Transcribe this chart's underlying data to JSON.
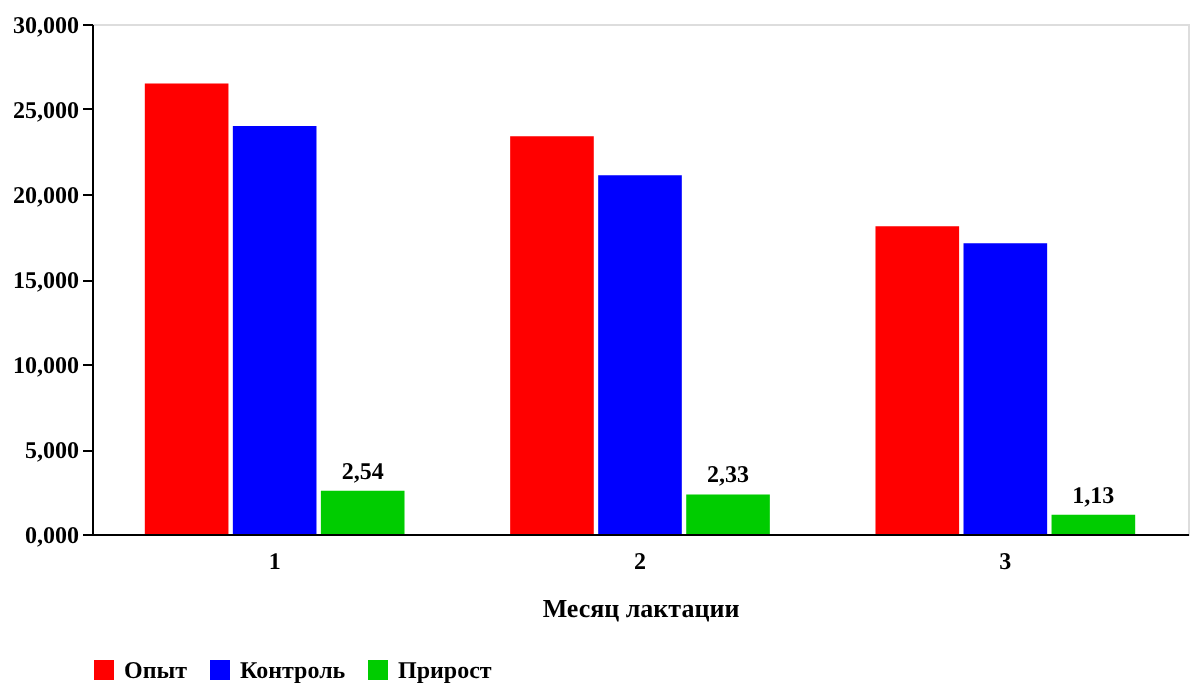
{
  "chart_data": {
    "type": "bar",
    "xlabel": "Месяц лактации",
    "categories": [
      "1",
      "2",
      "3"
    ],
    "series": [
      {
        "name": "Опыт",
        "color": "#ff0000",
        "values": [
          26.5,
          23.4,
          18.1
        ]
      },
      {
        "name": "Контроль",
        "color": "#0000ff",
        "values": [
          24.0,
          21.1,
          17.1
        ]
      },
      {
        "name": "Прирост",
        "color": "#00cc00",
        "values": [
          2.54,
          2.33,
          1.13
        ],
        "value_labels": [
          "2,54",
          "2,33",
          "1,13"
        ]
      }
    ],
    "ylim": [
      0,
      30
    ],
    "yticks": [
      {
        "value": 0,
        "label": "0,000"
      },
      {
        "value": 5,
        "label": "5,000"
      },
      {
        "value": 10,
        "label": "10,000"
      },
      {
        "value": 15,
        "label": "15,000"
      },
      {
        "value": 20,
        "label": "20,000"
      },
      {
        "value": 25,
        "label": "25,000"
      },
      {
        "value": 30,
        "label": "30,000"
      }
    ],
    "grid": false,
    "legend": "bottom"
  }
}
